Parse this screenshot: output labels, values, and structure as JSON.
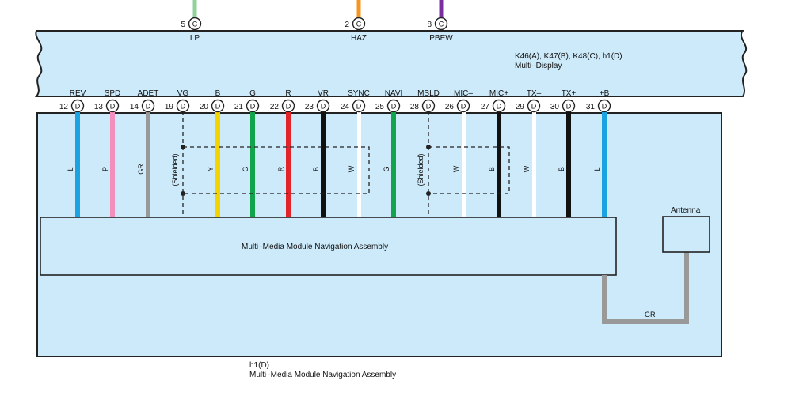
{
  "colors": {
    "panel": "#cdeafa",
    "stroke": "#222222",
    "L": "#1aa3e0",
    "P": "#f28fbd",
    "GR": "#999999",
    "Y": "#f4d400",
    "G": "#12a44a",
    "R": "#e2242a",
    "B": "#111111",
    "W": "#ffffff",
    "LG": "#8fd29a",
    "O": "#f7941d",
    "V": "#7a2fa0"
  },
  "top_pins": [
    {
      "num": "5",
      "conn": "C",
      "signal": "LP",
      "wire": "LG"
    },
    {
      "num": "2",
      "conn": "C",
      "signal": "HAZ",
      "wire": "O"
    },
    {
      "num": "8",
      "conn": "C",
      "signal": "PBEW",
      "wire": "V"
    }
  ],
  "display": {
    "connectors": "K46(A), K47(B), K48(C), h1(D)",
    "name": "Multi–Display"
  },
  "pins": [
    {
      "num": "12",
      "conn": "D",
      "signal": "REV",
      "color": "L"
    },
    {
      "num": "13",
      "conn": "D",
      "signal": "SPD",
      "color": "P"
    },
    {
      "num": "14",
      "conn": "D",
      "signal": "ADET",
      "color": "GR"
    },
    {
      "num": "19",
      "conn": "D",
      "signal": "VG",
      "color": ""
    },
    {
      "num": "20",
      "conn": "D",
      "signal": "B",
      "color": "Y"
    },
    {
      "num": "21",
      "conn": "D",
      "signal": "G",
      "color": "G"
    },
    {
      "num": "22",
      "conn": "D",
      "signal": "R",
      "color": "R"
    },
    {
      "num": "23",
      "conn": "D",
      "signal": "VR",
      "color": "B"
    },
    {
      "num": "24",
      "conn": "D",
      "signal": "SYNC",
      "color": "W"
    },
    {
      "num": "25",
      "conn": "D",
      "signal": "NAVI",
      "color": "G"
    },
    {
      "num": "28",
      "conn": "D",
      "signal": "MSLD",
      "color": ""
    },
    {
      "num": "26",
      "conn": "D",
      "signal": "MIC–",
      "color": "W"
    },
    {
      "num": "27",
      "conn": "D",
      "signal": "MIC+",
      "color": "B"
    },
    {
      "num": "29",
      "conn": "D",
      "signal": "TX–",
      "color": "W"
    },
    {
      "num": "30",
      "conn": "D",
      "signal": "TX+",
      "color": "B"
    },
    {
      "num": "31",
      "conn": "D",
      "signal": "+B",
      "color": "L"
    }
  ],
  "shielded_label": "(Shielded)",
  "module_label": "Multi–Media Module Navigation Assembly",
  "antenna": {
    "label": "Antenna",
    "wire_color": "GR"
  },
  "footer": {
    "connector": "h1(D)",
    "name": "Multi–Media Module Navigation Assembly"
  }
}
